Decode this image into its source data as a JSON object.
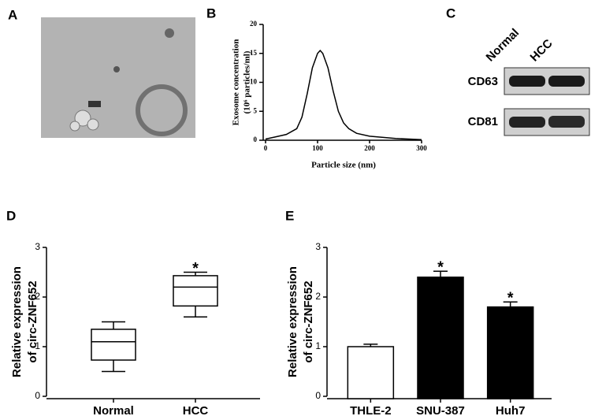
{
  "panel_labels": [
    "A",
    "B",
    "C",
    "D",
    "E"
  ],
  "blot": {
    "lanes": [
      "Normal",
      "HCC"
    ],
    "markers": [
      "CD63",
      "CD81"
    ]
  },
  "chart_data": [
    {
      "type": "line",
      "ylabel": [
        "Exosome concentration",
        "(10⁶ particles/ml)"
      ],
      "xlabel": "Particle size (nm)",
      "x": [
        0,
        20,
        40,
        60,
        70,
        80,
        90,
        100,
        105,
        110,
        120,
        130,
        140,
        150,
        160,
        175,
        200,
        250,
        300
      ],
      "values": [
        0.2,
        0.6,
        1,
        2,
        4,
        8,
        12.5,
        15,
        15.5,
        15,
        12.5,
        8.5,
        5,
        3,
        2,
        1.2,
        0.7,
        0.3,
        0.1
      ],
      "color": "#000000",
      "xlim": [
        0,
        300
      ],
      "xticks": [
        0,
        100,
        200,
        300
      ],
      "ylim": [
        0,
        20
      ],
      "yticks": [
        0,
        5,
        10,
        15,
        20
      ]
    },
    {
      "type": "box",
      "ylabel": [
        "Relative expression",
        "of circ-ZNF652"
      ],
      "categories": [
        "Normal",
        "HCC"
      ],
      "min": [
        0.5,
        1.6
      ],
      "q1": [
        0.73,
        1.82
      ],
      "median": [
        1.1,
        2.2
      ],
      "q3": [
        1.35,
        2.43
      ],
      "max": [
        1.5,
        2.5
      ],
      "significance": [
        null,
        "*"
      ],
      "ylim": [
        0,
        3
      ],
      "yticks": [
        0,
        1,
        2,
        3
      ]
    },
    {
      "type": "bar",
      "ylabel": [
        "Relative expression",
        "of circ-ZNF652"
      ],
      "categories": [
        "THLE-2",
        "SNU-387",
        "Huh7"
      ],
      "values": [
        1.0,
        2.4,
        1.8
      ],
      "errors": [
        0.05,
        0.12,
        0.1
      ],
      "colors": [
        "#ffffff",
        "#000000",
        "#000000"
      ],
      "significance": [
        null,
        "*",
        "*"
      ],
      "ylim": [
        0,
        3
      ],
      "yticks": [
        0,
        1,
        2,
        3
      ]
    }
  ]
}
